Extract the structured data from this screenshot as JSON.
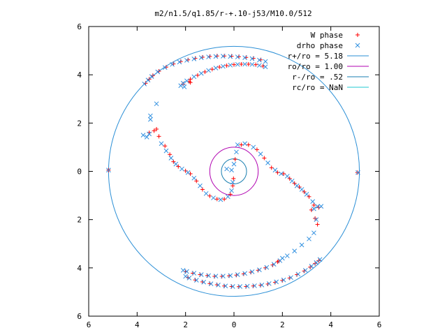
{
  "chart_data": {
    "type": "scatter",
    "title": "m2/n1.5/q1.85/r-+.10-j53/M10.0/512",
    "xlabel": "",
    "ylabel": "",
    "xlim": [
      -6,
      6
    ],
    "ylim": [
      -6,
      6
    ],
    "x_ticks": [
      -6,
      -4,
      -2,
      0,
      2,
      4,
      6
    ],
    "y_ticks": [
      -6,
      -4,
      -2,
      0,
      2,
      4,
      6
    ],
    "x_tick_labels": [
      "6",
      "4",
      "2",
      "0",
      "2",
      "4",
      "6"
    ],
    "y_tick_labels": [
      "6",
      "4",
      "2",
      "0",
      "2",
      "4",
      "6"
    ],
    "grid": false,
    "legend_position": "top-right",
    "series": [
      {
        "name": "W phase",
        "marker": "plus",
        "color": "#ff0000",
        "points": [
          [
            -5.18,
            0.05
          ],
          [
            5.1,
            -0.05
          ],
          [
            -3.65,
            3.65
          ],
          [
            -3.5,
            3.82
          ],
          [
            -3.35,
            3.97
          ],
          [
            -3.1,
            4.15
          ],
          [
            -2.8,
            4.32
          ],
          [
            -2.5,
            4.45
          ],
          [
            -2.2,
            4.55
          ],
          [
            -1.9,
            4.62
          ],
          [
            -1.6,
            4.68
          ],
          [
            -1.3,
            4.73
          ],
          [
            -1.0,
            4.76
          ],
          [
            -0.7,
            4.78
          ],
          [
            -0.4,
            4.78
          ],
          [
            -0.1,
            4.77
          ],
          [
            0.2,
            4.75
          ],
          [
            0.5,
            4.72
          ],
          [
            0.8,
            4.68
          ],
          [
            1.1,
            4.62
          ],
          [
            -2.1,
            3.62
          ],
          [
            -1.8,
            3.82
          ],
          [
            -1.5,
            3.98
          ],
          [
            -1.2,
            4.12
          ],
          [
            -0.9,
            4.23
          ],
          [
            -0.6,
            4.32
          ],
          [
            -0.3,
            4.38
          ],
          [
            0.0,
            4.42
          ],
          [
            0.3,
            4.44
          ],
          [
            0.6,
            4.44
          ],
          [
            0.9,
            4.42
          ],
          [
            1.2,
            4.36
          ],
          [
            -1.85,
            3.72
          ],
          [
            -1.8,
            3.68
          ],
          [
            -3.5,
            1.6
          ],
          [
            -3.3,
            1.68
          ],
          [
            -3.2,
            1.75
          ],
          [
            -3.1,
            1.45
          ],
          [
            -2.85,
            1.05
          ],
          [
            -2.65,
            0.7
          ],
          [
            -2.5,
            0.4
          ],
          [
            -2.3,
            0.2
          ],
          [
            -2.0,
            0.02
          ],
          [
            -1.8,
            -0.1
          ],
          [
            -1.55,
            -0.4
          ],
          [
            -1.3,
            -0.75
          ],
          [
            -1.0,
            -1.02
          ],
          [
            -0.7,
            -1.15
          ],
          [
            -0.4,
            -1.15
          ],
          [
            -0.15,
            -0.95
          ],
          [
            -0.05,
            -0.6
          ],
          [
            -0.02,
            -0.3
          ],
          [
            0.05,
            0.5
          ],
          [
            0.3,
            1.1
          ],
          [
            0.6,
            1.1
          ],
          [
            0.95,
            0.9
          ],
          [
            1.25,
            0.55
          ],
          [
            1.55,
            0.15
          ],
          [
            1.8,
            -0.05
          ],
          [
            2.05,
            -0.1
          ],
          [
            2.3,
            -0.3
          ],
          [
            2.5,
            -0.5
          ],
          [
            2.7,
            -0.65
          ],
          [
            2.9,
            -0.85
          ],
          [
            3.1,
            -1.05
          ],
          [
            3.3,
            -1.4
          ],
          [
            3.5,
            -1.5
          ],
          [
            3.2,
            -1.6
          ],
          [
            3.35,
            -1.95
          ],
          [
            3.45,
            -2.2
          ],
          [
            3.5,
            -3.7
          ],
          [
            3.35,
            -3.82
          ],
          [
            3.15,
            -3.97
          ],
          [
            2.9,
            -4.13
          ],
          [
            2.6,
            -4.28
          ],
          [
            2.3,
            -4.42
          ],
          [
            2.0,
            -4.52
          ],
          [
            1.7,
            -4.6
          ],
          [
            1.4,
            -4.67
          ],
          [
            1.1,
            -4.72
          ],
          [
            0.8,
            -4.75
          ],
          [
            0.5,
            -4.77
          ],
          [
            0.2,
            -4.78
          ],
          [
            -0.1,
            -4.77
          ],
          [
            -0.4,
            -4.75
          ],
          [
            -0.7,
            -4.7
          ],
          [
            -1.0,
            -4.65
          ],
          [
            -1.3,
            -4.58
          ],
          [
            -1.6,
            -4.5
          ],
          [
            -1.9,
            -4.4
          ],
          [
            1.8,
            -3.75
          ],
          [
            1.85,
            -3.72
          ],
          [
            1.6,
            -3.88
          ],
          [
            1.3,
            -4.0
          ],
          [
            1.0,
            -4.1
          ],
          [
            0.7,
            -4.18
          ],
          [
            0.4,
            -4.25
          ],
          [
            0.1,
            -4.3
          ],
          [
            -0.2,
            -4.33
          ],
          [
            -0.5,
            -4.35
          ],
          [
            -0.8,
            -4.35
          ],
          [
            -1.1,
            -4.32
          ],
          [
            -1.4,
            -4.28
          ],
          [
            -1.7,
            -4.22
          ],
          [
            -2.0,
            -4.15
          ]
        ]
      },
      {
        "name": "drho phase",
        "marker": "x",
        "color": "#2f8fe0",
        "points": [
          [
            -5.18,
            0.05
          ],
          [
            5.12,
            -0.05
          ],
          [
            -3.7,
            3.62
          ],
          [
            -3.55,
            3.78
          ],
          [
            -3.4,
            3.93
          ],
          [
            -3.15,
            4.12
          ],
          [
            -2.85,
            4.3
          ],
          [
            -2.55,
            4.43
          ],
          [
            -2.25,
            4.53
          ],
          [
            -1.95,
            4.6
          ],
          [
            -1.65,
            4.66
          ],
          [
            -1.35,
            4.71
          ],
          [
            -1.05,
            4.74
          ],
          [
            -0.75,
            4.76
          ],
          [
            -0.45,
            4.77
          ],
          [
            -0.15,
            4.76
          ],
          [
            0.15,
            4.74
          ],
          [
            0.45,
            4.71
          ],
          [
            0.75,
            4.67
          ],
          [
            1.05,
            4.61
          ],
          [
            1.3,
            4.55
          ],
          [
            -2.2,
            3.55
          ],
          [
            -1.95,
            3.75
          ],
          [
            -1.65,
            3.92
          ],
          [
            -1.35,
            4.06
          ],
          [
            -1.05,
            4.18
          ],
          [
            -0.75,
            4.28
          ],
          [
            -0.45,
            4.35
          ],
          [
            -0.15,
            4.4
          ],
          [
            0.15,
            4.43
          ],
          [
            0.45,
            4.44
          ],
          [
            0.75,
            4.43
          ],
          [
            1.05,
            4.39
          ],
          [
            1.3,
            4.33
          ],
          [
            -2.1,
            3.65
          ],
          [
            -2.05,
            3.5
          ],
          [
            -3.2,
            2.8
          ],
          [
            -3.45,
            2.3
          ],
          [
            -3.45,
            2.15
          ],
          [
            -3.75,
            1.5
          ],
          [
            -3.6,
            1.42
          ],
          [
            -3.5,
            1.55
          ],
          [
            -3.0,
            1.15
          ],
          [
            -2.8,
            0.85
          ],
          [
            -2.6,
            0.55
          ],
          [
            -2.4,
            0.3
          ],
          [
            -2.15,
            0.1
          ],
          [
            -1.9,
            -0.05
          ],
          [
            -1.65,
            -0.28
          ],
          [
            -1.4,
            -0.6
          ],
          [
            -1.15,
            -0.92
          ],
          [
            -0.85,
            -1.1
          ],
          [
            -0.55,
            -1.17
          ],
          [
            -0.25,
            -1.05
          ],
          [
            -0.1,
            -0.8
          ],
          [
            -0.05,
            -0.45
          ],
          [
            -0.1,
            0.05
          ],
          [
            -0.3,
            0.1
          ],
          [
            0.0,
            0.3
          ],
          [
            0.1,
            0.8
          ],
          [
            0.15,
            1.1
          ],
          [
            0.45,
            1.15
          ],
          [
            0.8,
            1.0
          ],
          [
            1.1,
            0.72
          ],
          [
            1.4,
            0.35
          ],
          [
            1.7,
            0.05
          ],
          [
            1.95,
            -0.1
          ],
          [
            2.2,
            -0.2
          ],
          [
            2.4,
            -0.4
          ],
          [
            2.6,
            -0.6
          ],
          [
            2.8,
            -0.75
          ],
          [
            3.0,
            -0.95
          ],
          [
            3.25,
            -1.25
          ],
          [
            3.45,
            -1.45
          ],
          [
            3.6,
            -1.45
          ],
          [
            3.3,
            -1.55
          ],
          [
            3.4,
            -2.0
          ],
          [
            3.55,
            -3.65
          ],
          [
            3.4,
            -3.78
          ],
          [
            3.2,
            -3.93
          ],
          [
            2.95,
            -4.1
          ],
          [
            2.65,
            -4.26
          ],
          [
            2.35,
            -4.4
          ],
          [
            2.05,
            -4.5
          ],
          [
            1.75,
            -4.58
          ],
          [
            1.45,
            -4.65
          ],
          [
            1.15,
            -4.71
          ],
          [
            0.85,
            -4.74
          ],
          [
            0.55,
            -4.76
          ],
          [
            0.25,
            -4.77
          ],
          [
            -0.05,
            -4.77
          ],
          [
            -0.35,
            -4.75
          ],
          [
            -0.65,
            -4.71
          ],
          [
            -0.95,
            -4.66
          ],
          [
            -1.25,
            -4.59
          ],
          [
            -1.55,
            -4.51
          ],
          [
            -1.85,
            -4.42
          ],
          [
            -2.0,
            -4.35
          ],
          [
            1.9,
            -3.7
          ],
          [
            2.0,
            -3.6
          ],
          [
            2.2,
            -3.5
          ],
          [
            2.5,
            -3.3
          ],
          [
            2.8,
            -3.05
          ],
          [
            3.1,
            -2.8
          ],
          [
            3.3,
            -2.55
          ],
          [
            1.65,
            -3.85
          ],
          [
            1.35,
            -3.98
          ],
          [
            1.05,
            -4.08
          ],
          [
            0.75,
            -4.16
          ],
          [
            0.45,
            -4.23
          ],
          [
            0.15,
            -4.28
          ],
          [
            -0.15,
            -4.32
          ],
          [
            -0.45,
            -4.34
          ],
          [
            -0.75,
            -4.34
          ],
          [
            -1.05,
            -4.32
          ],
          [
            -1.35,
            -4.28
          ],
          [
            -1.65,
            -4.22
          ],
          [
            -1.95,
            -4.15
          ],
          [
            -2.1,
            -4.1
          ]
        ]
      },
      {
        "name": "r+/ro = 5.18",
        "type": "circle",
        "radius": 5.18,
        "color": "#2b8fd6"
      },
      {
        "name": "ro/ro = 1.00",
        "type": "circle",
        "radius": 1.0,
        "color": "#b000b0"
      },
      {
        "name": "r-/ro = .52",
        "type": "circle",
        "radius": 0.52,
        "color": "#1a7fb0"
      },
      {
        "name": "rc/ro = NaN",
        "type": "circle",
        "radius": null,
        "color": "#20c8d0"
      }
    ]
  }
}
